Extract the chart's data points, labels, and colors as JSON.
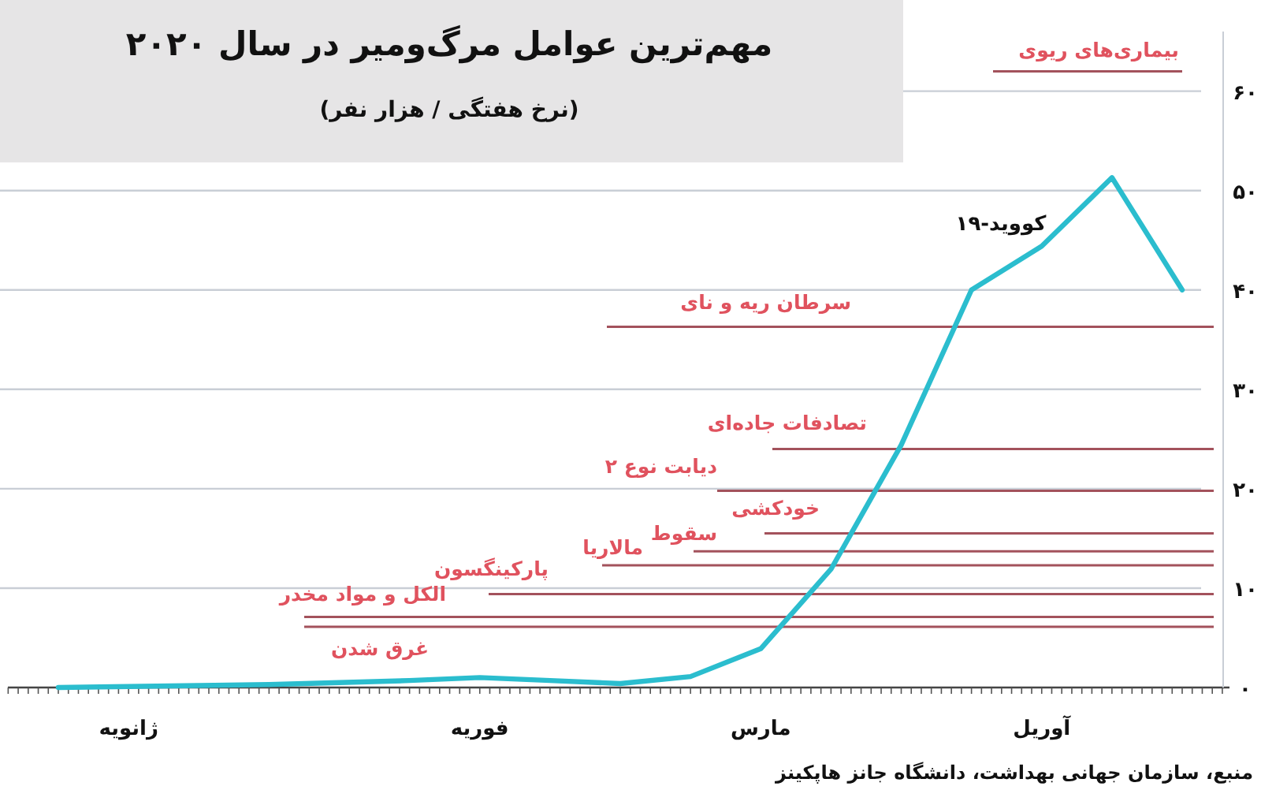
{
  "chart_data": {
    "type": "line",
    "title": "مهم‌ترین عوامل مرگ‌ومیر در سال ۲۰۲۰",
    "subtitle": "(نرخ هفتگی / هزار نفر)",
    "categories": [
      null,
      "ژانویه",
      null,
      null,
      null,
      null,
      "فوریه",
      null,
      null,
      null,
      "مارس",
      null,
      null,
      null,
      "آوریل",
      null,
      null
    ],
    "series": [
      {
        "name": "کووید-۱۹",
        "color": "#2bbdce",
        "values": [
          0,
          0.1,
          0.2,
          0.3,
          0.5,
          0.7,
          1.0,
          0.7,
          0.4,
          1.1,
          3.9,
          11.9,
          24.4,
          40,
          44.4,
          51.3,
          40
        ]
      }
    ],
    "ylim": [
      0,
      66
    ],
    "yticks": [
      {
        "value": 0,
        "label": "۰"
      },
      {
        "value": 10,
        "label": "۱۰"
      },
      {
        "value": 20,
        "label": "۲۰"
      },
      {
        "value": 30,
        "label": "۳۰"
      },
      {
        "value": 40,
        "label": "۴۰"
      },
      {
        "value": 50,
        "label": "۵۰"
      },
      {
        "value": 60,
        "label": "۶۰"
      }
    ],
    "grid": "y",
    "legend": false,
    "marker": "none",
    "line_style": "solid",
    "ref_lines": [
      {
        "axis": "y",
        "value": 62,
        "label": "بیماری‌های ریوی",
        "color": "#a3525c"
      },
      {
        "axis": "y",
        "value": 36.3,
        "label": "سرطان ریه و نای",
        "color": "#a3525c"
      },
      {
        "axis": "y",
        "value": 24,
        "label": "تصادفات جاده‌ای",
        "color": "#a3525c"
      },
      {
        "axis": "y",
        "value": 19.8,
        "label": "دیابت نوع ۲",
        "color": "#a3525c"
      },
      {
        "axis": "y",
        "value": 15.5,
        "label": "خودکشی",
        "color": "#a3525c"
      },
      {
        "axis": "y",
        "value": 13.7,
        "label": "سقوط",
        "color": "#a3525c"
      },
      {
        "axis": "y",
        "value": 12.3,
        "label": "مالاریا",
        "color": "#a3525c"
      },
      {
        "axis": "y",
        "value": 9.4,
        "label": "پارکینگسون",
        "color": "#a3525c"
      },
      {
        "axis": "y",
        "value": 7.1,
        "label": "الکل و مواد مخدر",
        "color": "#a3525c"
      },
      {
        "axis": "y",
        "value": 6.1,
        "label": "غرق شدن",
        "color": "#a3525c"
      }
    ],
    "annotations": [
      "منبع، سازمان جهانی بهداشت، دانشگاه جانز هاپکینز"
    ]
  }
}
